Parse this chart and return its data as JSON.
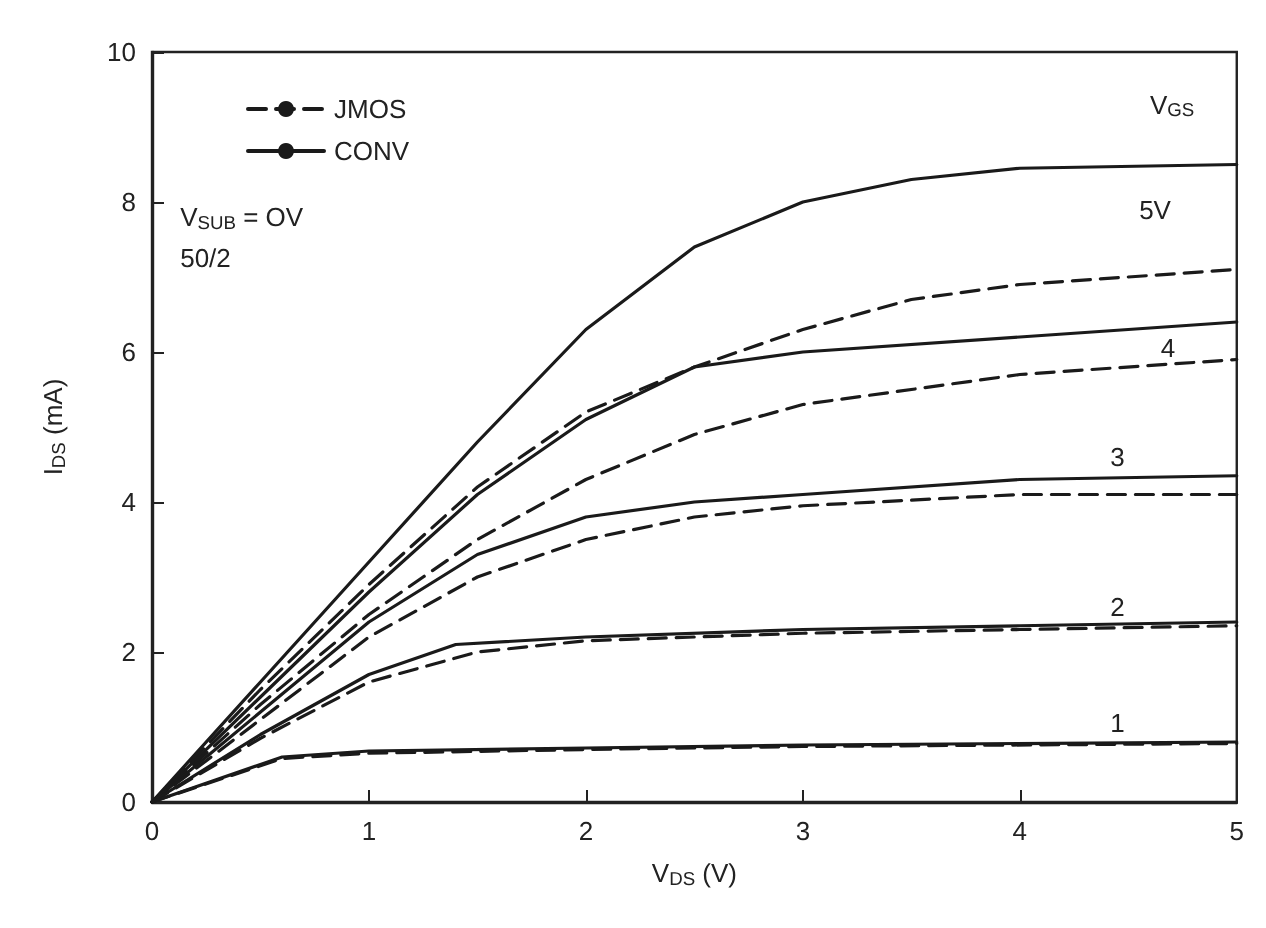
{
  "chart_data": {
    "type": "line",
    "xlabel": "V$_{DS}$ (V)",
    "ylabel": "I$_{DS}$ (mA)",
    "xlim": [
      0,
      5
    ],
    "xticks": [
      0,
      1,
      2,
      3,
      4,
      5
    ],
    "ylim": [
      0,
      10
    ],
    "yticks": [
      0,
      2,
      4,
      6,
      8,
      10
    ],
    "grid": false,
    "legend": "top left",
    "marker": "none",
    "series": [
      {
        "name": "CONV",
        "color": "#1a1a1a",
        "line_style": "solid",
        "x": [
          0,
          0.5,
          1,
          1.5,
          2,
          2.5,
          3,
          3.5,
          4,
          5
        ],
        "values": [
          0,
          1.6,
          3.2,
          4.8,
          6.3,
          7.4,
          8.0,
          8.3,
          8.45,
          8.5
        ]
      },
      {
        "name": "JMOS",
        "color": "#1a1a1a",
        "line_style": "dashed",
        "x": [
          0,
          0.5,
          1,
          1.5,
          2,
          2.5,
          3,
          3.5,
          4,
          5
        ],
        "values": [
          0,
          1.5,
          2.9,
          4.2,
          5.2,
          5.8,
          6.3,
          6.7,
          6.9,
          7.1
        ]
      },
      {
        "color": "#1a1a1a",
        "line_style": "solid",
        "x": [
          0,
          0.5,
          1,
          1.5,
          2,
          2.5,
          3,
          4,
          5
        ],
        "values": [
          0,
          1.4,
          2.8,
          4.1,
          5.1,
          5.8,
          6.0,
          6.2,
          6.4
        ]
      },
      {
        "color": "#1a1a1a",
        "line_style": "dashed",
        "x": [
          0,
          0.5,
          1,
          1.5,
          2,
          2.5,
          3,
          4,
          5
        ],
        "values": [
          0,
          1.3,
          2.5,
          3.5,
          4.3,
          4.9,
          5.3,
          5.7,
          5.9
        ]
      },
      {
        "color": "#1a1a1a",
        "line_style": "solid",
        "x": [
          0,
          0.5,
          1,
          1.5,
          2,
          2.5,
          3,
          4,
          5
        ],
        "values": [
          0,
          1.2,
          2.4,
          3.3,
          3.8,
          4.0,
          4.1,
          4.3,
          4.35
        ]
      },
      {
        "color": "#1a1a1a",
        "line_style": "dashed",
        "x": [
          0,
          0.5,
          1,
          1.5,
          2,
          2.5,
          3,
          4,
          5
        ],
        "values": [
          0,
          1.1,
          2.2,
          3.0,
          3.5,
          3.8,
          3.95,
          4.1,
          4.1
        ]
      },
      {
        "color": "#1a1a1a",
        "line_style": "solid",
        "x": [
          0,
          0.5,
          1,
          1.4,
          2,
          3,
          4,
          5
        ],
        "values": [
          0,
          0.9,
          1.7,
          2.1,
          2.2,
          2.3,
          2.35,
          2.4
        ]
      },
      {
        "color": "#1a1a1a",
        "line_style": "dashed",
        "x": [
          0,
          0.5,
          1,
          1.5,
          2,
          3,
          4,
          5
        ],
        "values": [
          0,
          0.85,
          1.6,
          2.0,
          2.15,
          2.25,
          2.3,
          2.35
        ]
      },
      {
        "color": "#1a1a1a",
        "line_style": "solid",
        "x": [
          0,
          0.6,
          1,
          2,
          3,
          5
        ],
        "values": [
          0,
          0.6,
          0.68,
          0.72,
          0.76,
          0.8
        ]
      },
      {
        "color": "#1a1a1a",
        "line_style": "dashed",
        "x": [
          0,
          0.6,
          1,
          2,
          3,
          5
        ],
        "values": [
          0,
          0.58,
          0.65,
          0.7,
          0.74,
          0.78
        ]
      }
    ],
    "annotations": [
      "V$_{GS}$",
      "5V",
      "4",
      "3",
      "2",
      "1",
      "V$_{SUB}$ = OV",
      "50/2"
    ]
  }
}
